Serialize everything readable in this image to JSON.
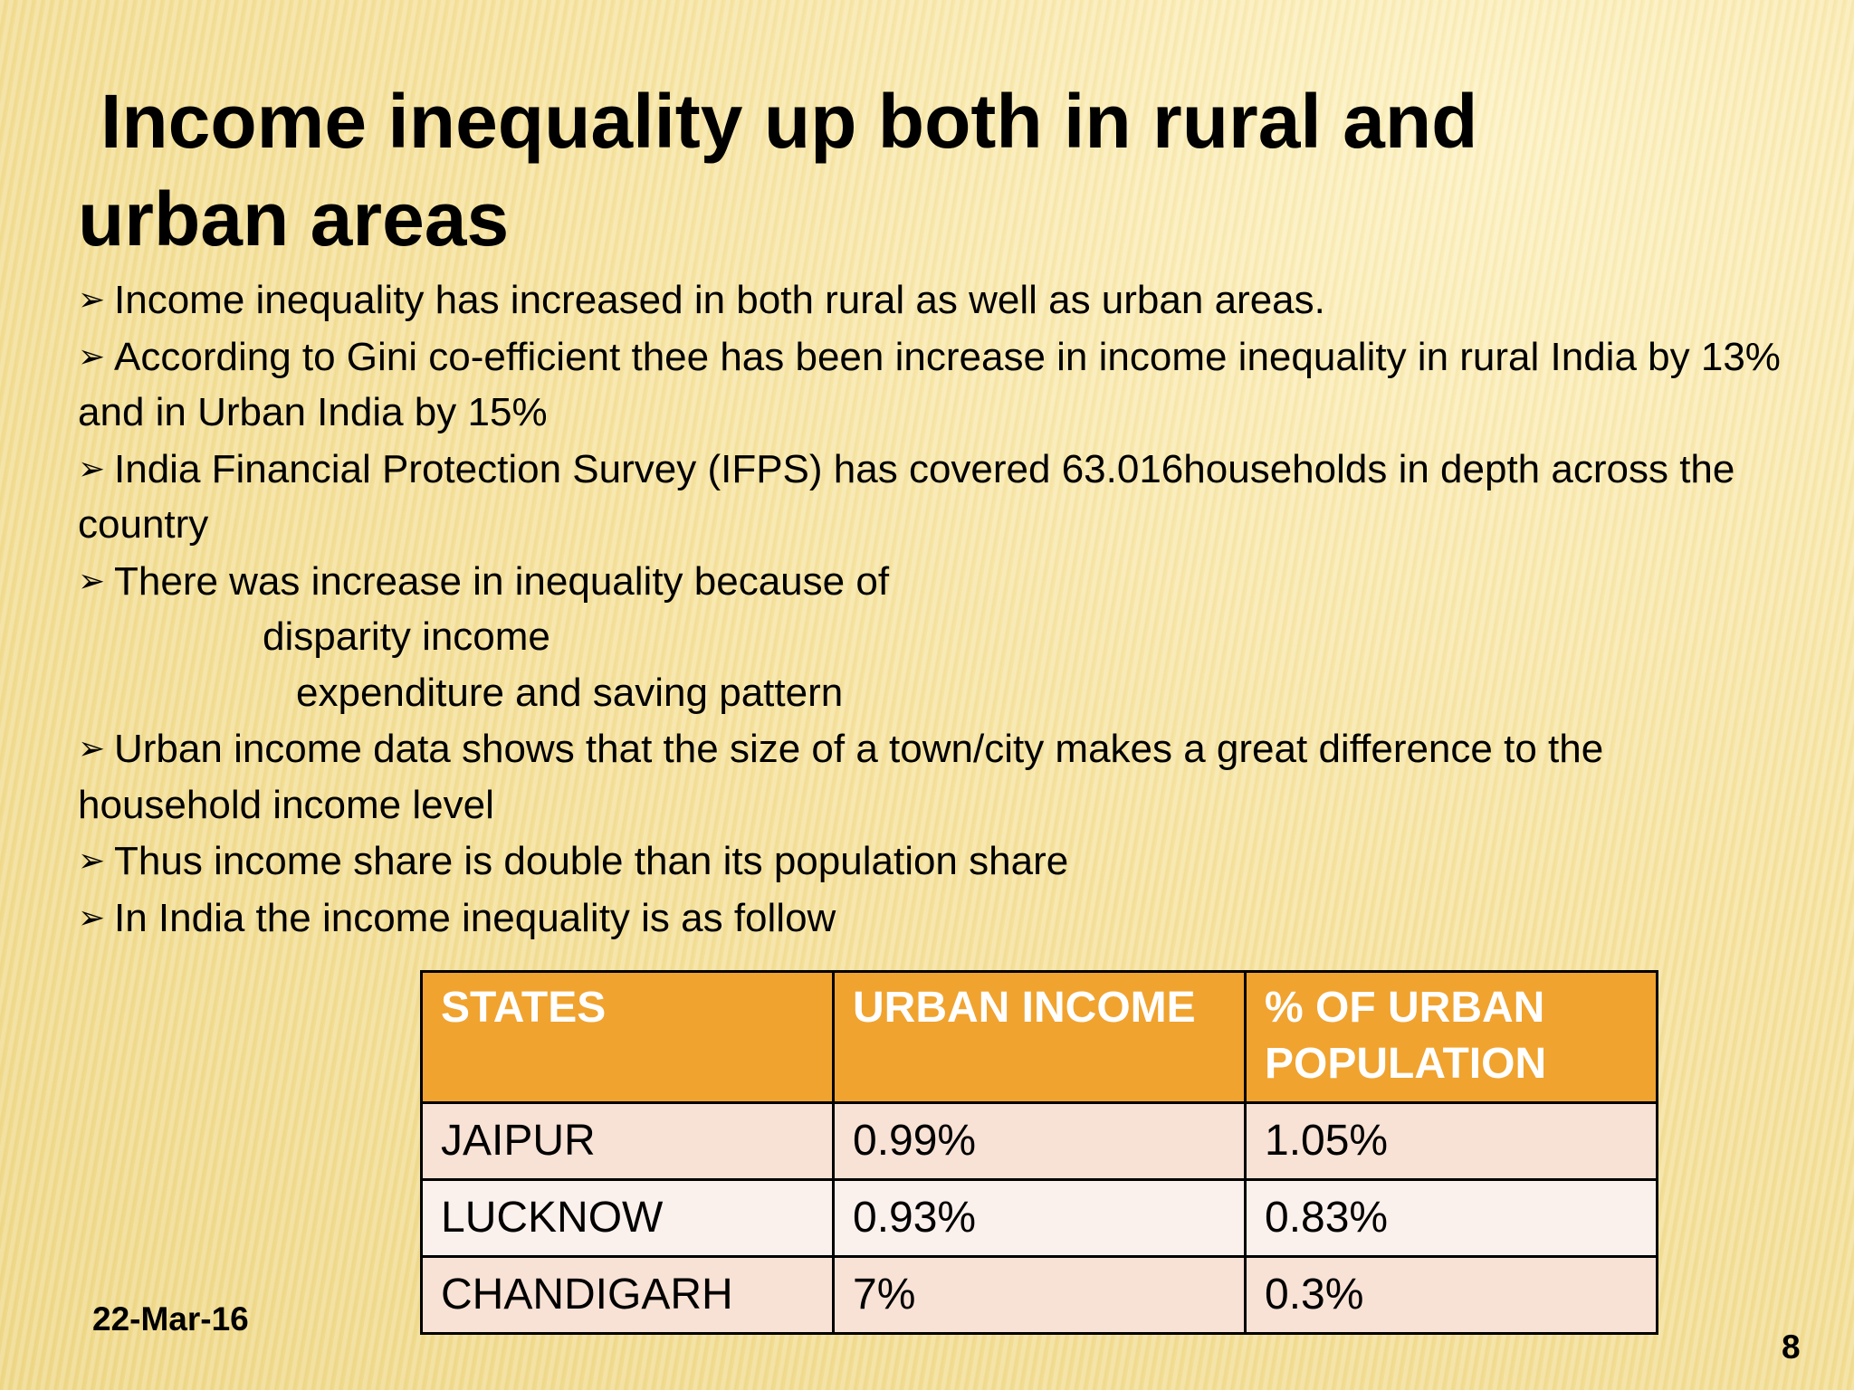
{
  "slide": {
    "title": "Income inequality up both in rural and urban areas",
    "bullets": [
      "Income inequality has increased in both rural as well as urban areas.",
      "According to Gini co-efficient thee has been increase in income inequality in rural India by 13% and in Urban India by 15%",
      "India Financial Protection Survey (IFPS) has covered 63.016households in depth across the country",
      "There was increase in inequality because of",
      "Urban income data shows that the size of a town/city makes a great difference to the household income level",
      "Thus income share is double than its population share",
      "In India the income inequality is as follow"
    ],
    "sub_items": [
      "disparity income",
      "expenditure and saving pattern"
    ],
    "table": {
      "header": [
        "STATES",
        "URBAN INCOME",
        "% OF URBAN POPULATION"
      ],
      "rows": [
        [
          "JAIPUR",
          "0.99%",
          "1.05%"
        ],
        [
          "LUCKNOW",
          "0.93%",
          "0.83%"
        ],
        [
          "CHANDIGARH",
          "7%",
          "0.3%"
        ]
      ]
    },
    "date": "22-Mar-16",
    "page_number": "8"
  }
}
